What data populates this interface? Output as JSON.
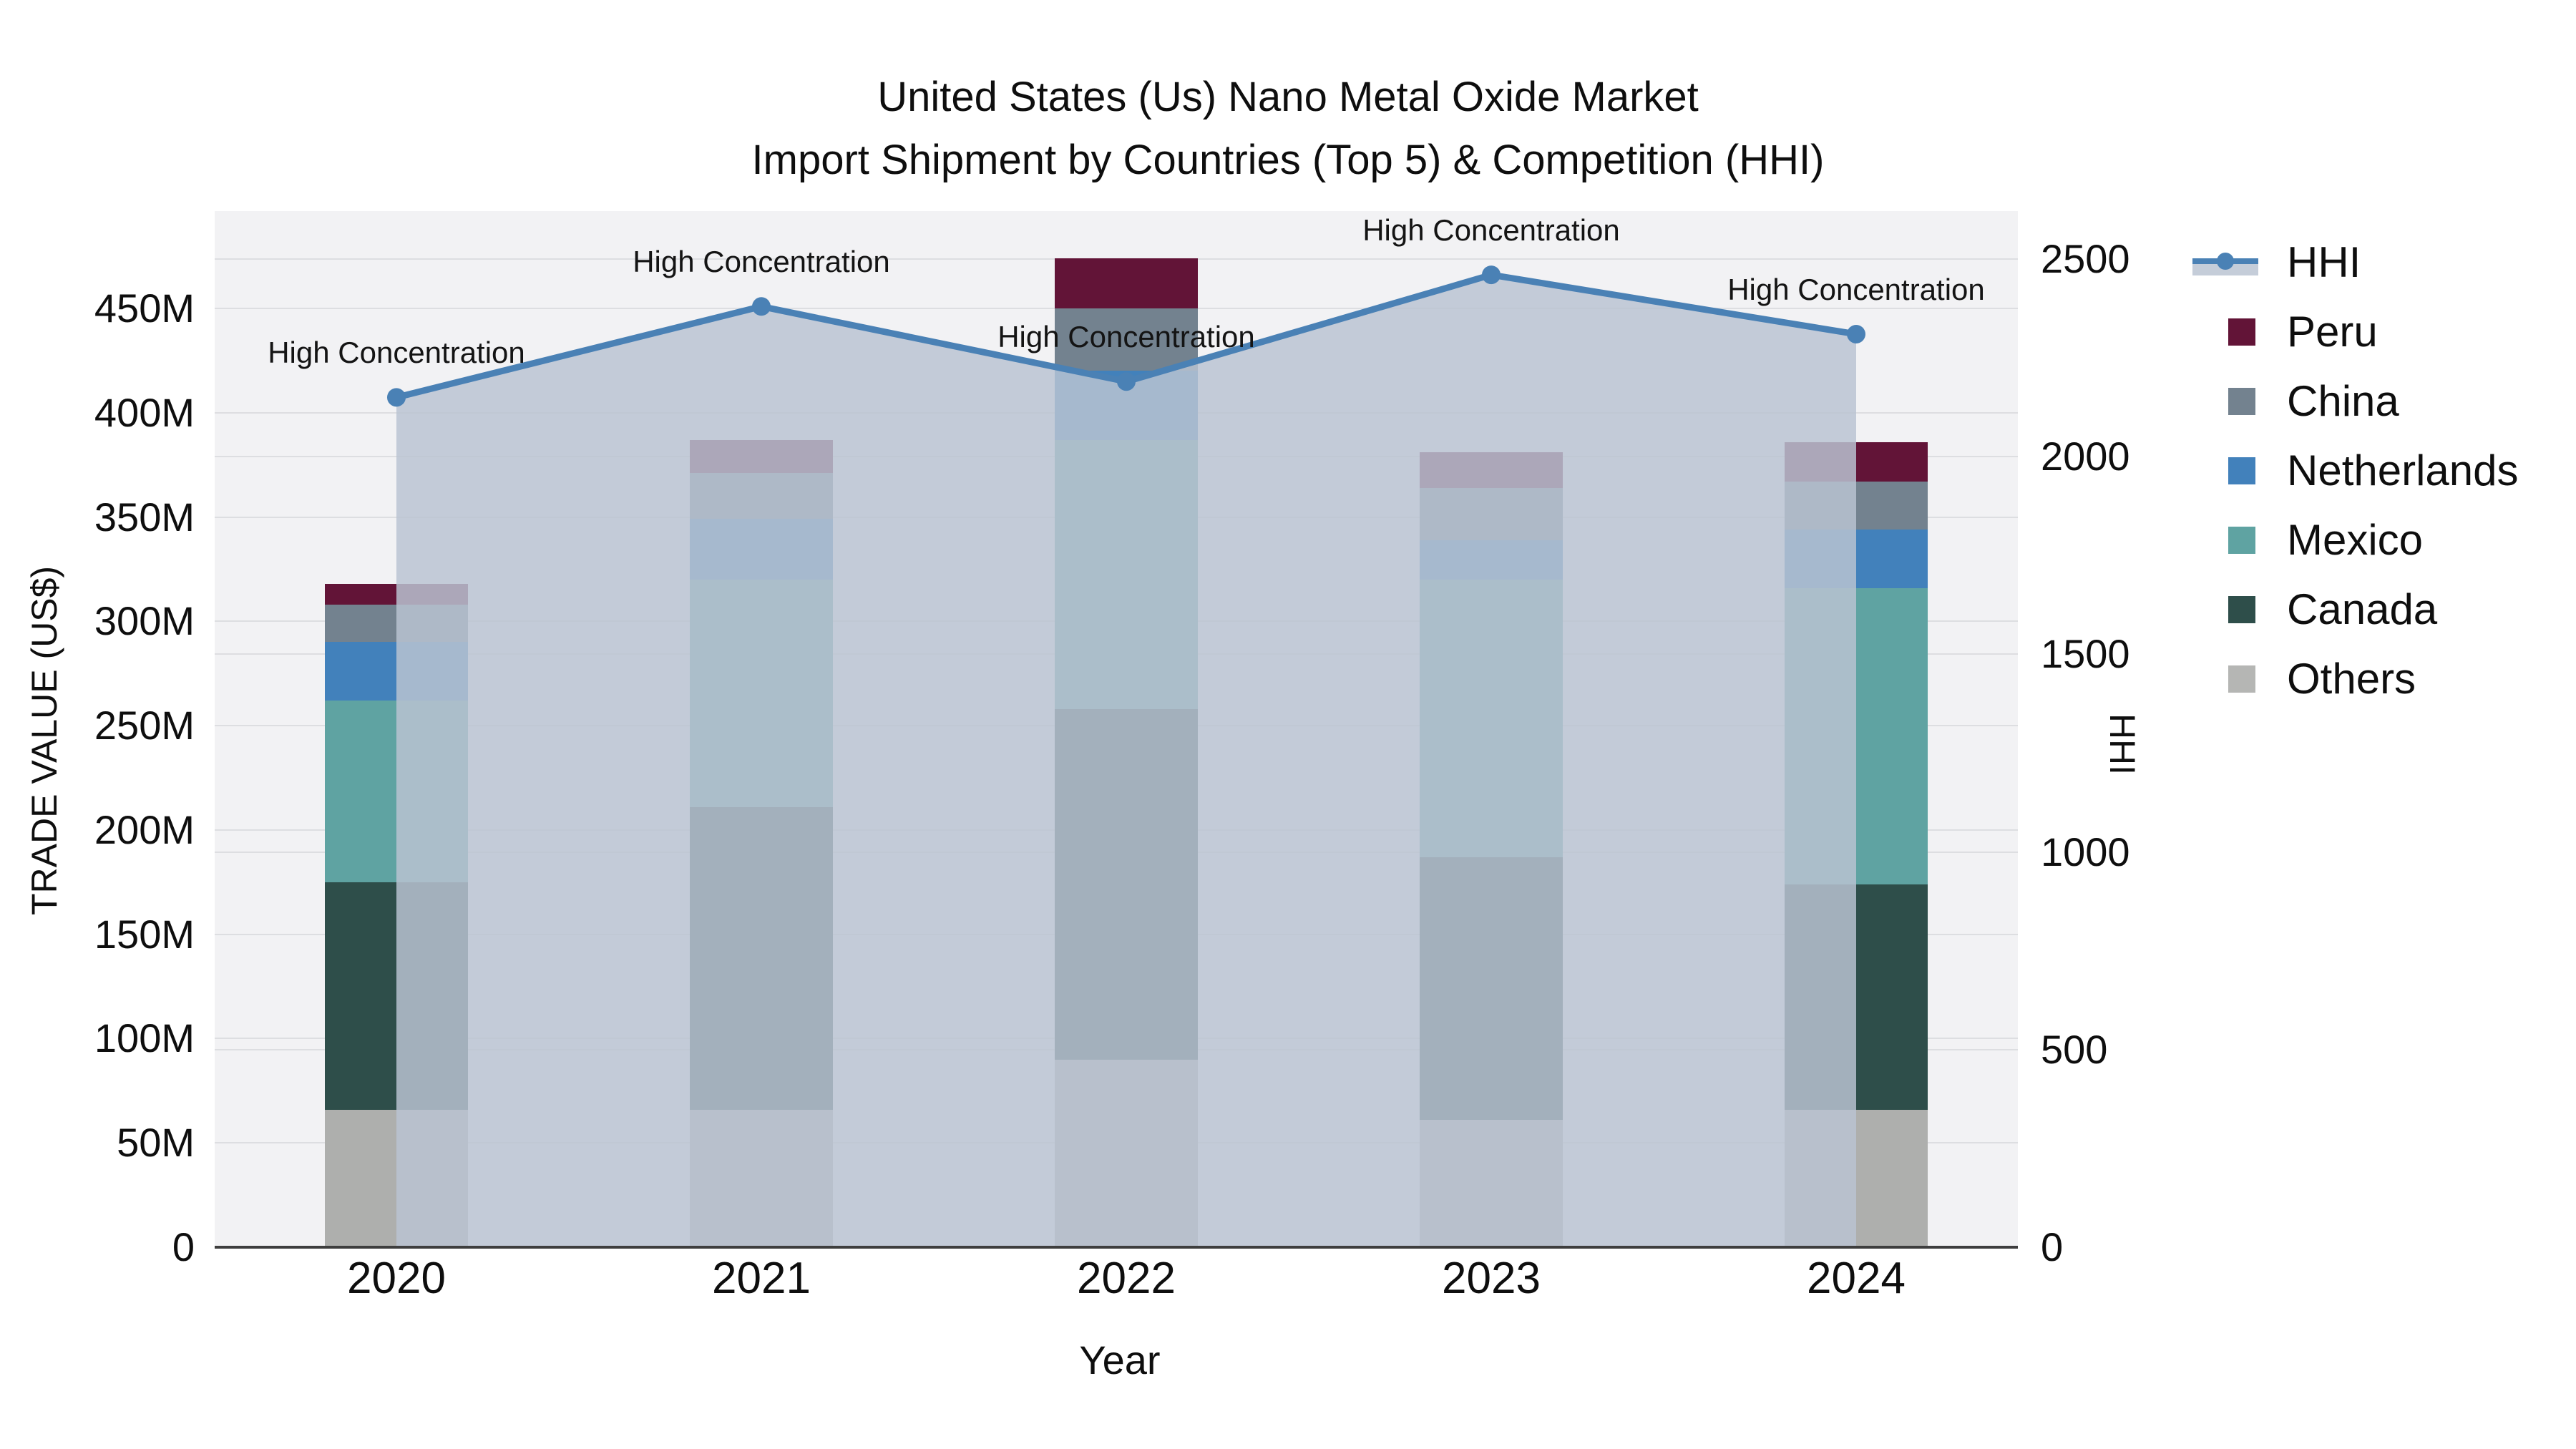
{
  "title": {
    "line1": "United States (Us) Nano Metal Oxide Market",
    "line2": "Import Shipment by Countries (Top 5) & Competition (HHI)"
  },
  "axes": {
    "x": {
      "title": "Year",
      "labels": [
        "2020",
        "2021",
        "2022",
        "2023",
        "2024"
      ]
    },
    "left": {
      "title": "TRADE VALUE (US$)",
      "ticks": [
        {
          "v": 0,
          "label": "0"
        },
        {
          "v": 50,
          "label": "50M"
        },
        {
          "v": 100,
          "label": "100M"
        },
        {
          "v": 150,
          "label": "150M"
        },
        {
          "v": 200,
          "label": "200M"
        },
        {
          "v": 250,
          "label": "250M"
        },
        {
          "v": 300,
          "label": "300M"
        },
        {
          "v": 350,
          "label": "350M"
        },
        {
          "v": 400,
          "label": "400M"
        },
        {
          "v": 450,
          "label": "450M"
        }
      ]
    },
    "right": {
      "title": "HHI",
      "ticks": [
        {
          "v": 0,
          "label": "0"
        },
        {
          "v": 500,
          "label": "500"
        },
        {
          "v": 1000,
          "label": "1000"
        },
        {
          "v": 1500,
          "label": "1500"
        },
        {
          "v": 2000,
          "label": "2000"
        },
        {
          "v": 2500,
          "label": "2500"
        }
      ]
    }
  },
  "chart_data": {
    "type": "bar",
    "subtype": "stacked-bars-with-line",
    "categories": [
      "2020",
      "2021",
      "2022",
      "2023",
      "2024"
    ],
    "value_unit": "M US$ (trade value, left axis); index points (HHI, right axis)",
    "ylim_left": [
      0,
      496
    ],
    "ylim_right": [
      0,
      2620
    ],
    "grid": true,
    "legend_position": "right",
    "stack_order_bottom_to_top": [
      "Others",
      "Canada",
      "Mexico",
      "Netherlands",
      "China",
      "Peru"
    ],
    "series": [
      {
        "name": "Peru",
        "color": "#621437",
        "values": [
          10,
          16,
          24,
          17,
          19
        ]
      },
      {
        "name": "China",
        "color": "#73828f",
        "values": [
          18,
          22,
          30,
          25,
          23
        ]
      },
      {
        "name": "Netherlands",
        "color": "#4281bb",
        "values": [
          28,
          29,
          33,
          19,
          28
        ]
      },
      {
        "name": "Mexico",
        "color": "#5fa3a2",
        "values": [
          87,
          109,
          129,
          133,
          142
        ]
      },
      {
        "name": "Canada",
        "color": "#2e4e4a",
        "values": [
          109,
          145,
          168,
          126,
          108
        ]
      },
      {
        "name": "Others",
        "color": "#aeafad",
        "values": [
          66,
          66,
          90,
          61,
          66
        ]
      }
    ],
    "line_series": {
      "name": "HHI",
      "color": "#4a81b5",
      "area_color": "rgba(186,195,210,0.84)",
      "values": [
        2150,
        2380,
        2190,
        2460,
        2310
      ],
      "point_annotations": [
        "High Concentration",
        "High Concentration",
        "High Concentration",
        "High Concentration",
        "High Concentration"
      ]
    },
    "title": "United States (Us) Nano Metal Oxide Market — Import Shipment by Countries (Top 5) & Competition (HHI)",
    "xlabel": "Year",
    "ylabel": "TRADE VALUE (US$)",
    "ylabel_right": "HHI"
  },
  "legend": {
    "items": [
      {
        "label": "HHI",
        "type": "line"
      },
      {
        "label": "Peru",
        "type": "swatch",
        "color": "#621437"
      },
      {
        "label": "China",
        "type": "swatch",
        "color": "#73828f"
      },
      {
        "label": "Netherlands",
        "type": "swatch",
        "color": "#4281bb"
      },
      {
        "label": "Mexico",
        "type": "swatch",
        "color": "#5fa3a2"
      },
      {
        "label": "Canada",
        "type": "swatch",
        "color": "#2e4e4a"
      },
      {
        "label": "Others",
        "type": "swatch",
        "color": "#b5b6b4"
      }
    ]
  }
}
